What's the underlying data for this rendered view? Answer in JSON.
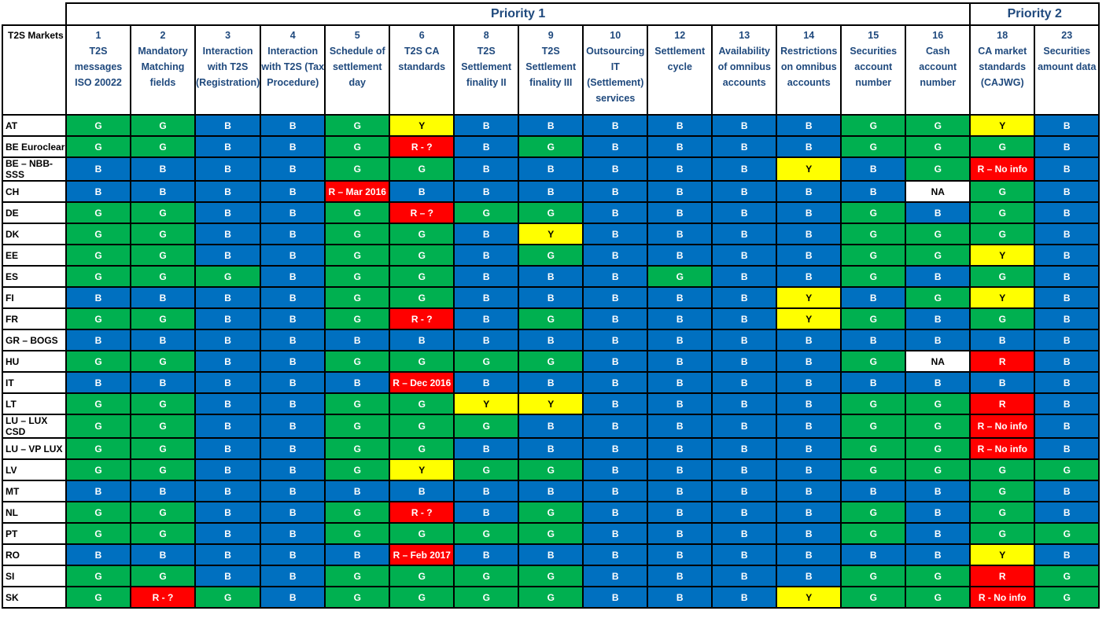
{
  "priority_headers": [
    "Priority 1",
    "Priority 2"
  ],
  "markets_header": "T2S Markets",
  "columns": [
    {
      "num": "1",
      "label": "T2S messages ISO 20022"
    },
    {
      "num": "2",
      "label": "Mandatory Matching fields"
    },
    {
      "num": "3",
      "label": "Interaction with T2S (Registration)"
    },
    {
      "num": "4",
      "label": "Interaction with T2S (Tax Procedure)"
    },
    {
      "num": "5",
      "label": "Schedule of settlement day"
    },
    {
      "num": "6",
      "label": "T2S CA standards"
    },
    {
      "num": "8",
      "label": "T2S Settlement finality II"
    },
    {
      "num": "9",
      "label": "T2S Settlement finality III"
    },
    {
      "num": "10",
      "label": "Outsourcing IT (Settlement) services"
    },
    {
      "num": "12",
      "label": "Settlement cycle"
    },
    {
      "num": "13",
      "label": "Availability of omnibus accounts"
    },
    {
      "num": "14",
      "label": "Restrictions on omnibus accounts"
    },
    {
      "num": "15",
      "label": "Securities account number"
    },
    {
      "num": "16",
      "label": "Cash account number"
    },
    {
      "num": "18",
      "label": "CA market standards (CAJWG)"
    },
    {
      "num": "23",
      "label": "Securities amount data"
    }
  ],
  "rows": [
    {
      "market": "AT",
      "cells": [
        "G",
        "G",
        "B",
        "B",
        "G",
        "Y",
        "B",
        "B",
        "B",
        "B",
        "B",
        "B",
        "G",
        "G",
        "Y",
        "B"
      ]
    },
    {
      "market": "BE Euroclear",
      "cells": [
        "G",
        "G",
        "B",
        "B",
        "G",
        "R - ?",
        "B",
        "G",
        "B",
        "B",
        "B",
        "B",
        "G",
        "G",
        "G",
        "B"
      ]
    },
    {
      "market": "BE – NBB-SSS",
      "cells": [
        "B",
        "B",
        "B",
        "B",
        "G",
        "G",
        "B",
        "B",
        "B",
        "B",
        "B",
        "Y",
        "B",
        "G",
        "R – No info",
        "B"
      ]
    },
    {
      "market": "CH",
      "cells": [
        "B",
        "B",
        "B",
        "B",
        "R – Mar 2016",
        "B",
        "B",
        "B",
        "B",
        "B",
        "B",
        "B",
        "B",
        "NA",
        "G",
        "B"
      ]
    },
    {
      "market": "DE",
      "cells": [
        "G",
        "G",
        "B",
        "B",
        "G",
        "R – ?",
        "G",
        "G",
        "B",
        "B",
        "B",
        "B",
        "G",
        "B",
        "G",
        "B"
      ]
    },
    {
      "market": "DK",
      "cells": [
        "G",
        "G",
        "B",
        "B",
        "G",
        "G",
        "B",
        "Y",
        "B",
        "B",
        "B",
        "B",
        "G",
        "G",
        "G",
        "B"
      ]
    },
    {
      "market": "EE",
      "cells": [
        "G",
        "G",
        "B",
        "B",
        "G",
        "G",
        "B",
        "G",
        "B",
        "B",
        "B",
        "B",
        "G",
        "G",
        "Y",
        "B"
      ]
    },
    {
      "market": "ES",
      "cells": [
        "G",
        "G",
        "G",
        "B",
        "G",
        "G",
        "B",
        "B",
        "B",
        "G",
        "B",
        "B",
        "G",
        "B",
        "G",
        "B"
      ]
    },
    {
      "market": "FI",
      "cells": [
        "B",
        "B",
        "B",
        "B",
        "G",
        "G",
        "B",
        "B",
        "B",
        "B",
        "B",
        "Y",
        "B",
        "G",
        "Y",
        "B"
      ]
    },
    {
      "market": "FR",
      "cells": [
        "G",
        "G",
        "B",
        "B",
        "G",
        "R - ?",
        "B",
        "G",
        "B",
        "B",
        "B",
        "Y",
        "G",
        "B",
        "G",
        "B"
      ]
    },
    {
      "market": "GR – BOGS",
      "cells": [
        "B",
        "B",
        "B",
        "B",
        "B",
        "B",
        "B",
        "B",
        "B",
        "B",
        "B",
        "B",
        "B",
        "B",
        "B",
        "B"
      ]
    },
    {
      "market": "HU",
      "cells": [
        "G",
        "G",
        "B",
        "B",
        "G",
        "G",
        "G",
        "G",
        "B",
        "B",
        "B",
        "B",
        "G",
        "NA",
        "R",
        "B"
      ]
    },
    {
      "market": "IT",
      "cells": [
        "B",
        "B",
        "B",
        "B",
        "B",
        "R – Dec 2016",
        "B",
        "B",
        "B",
        "B",
        "B",
        "B",
        "B",
        "B",
        "B",
        "B"
      ]
    },
    {
      "market": "LT",
      "cells": [
        "G",
        "G",
        "B",
        "B",
        "G",
        "G",
        "Y",
        "Y",
        "B",
        "B",
        "B",
        "B",
        "G",
        "G",
        "R",
        "B"
      ]
    },
    {
      "market": "LU – LUX CSD",
      "cells": [
        "G",
        "G",
        "B",
        "B",
        "G",
        "G",
        "G",
        "B",
        "B",
        "B",
        "B",
        "B",
        "G",
        "G",
        "R – No info",
        "B"
      ]
    },
    {
      "market": "LU – VP LUX",
      "cells": [
        "G",
        "G",
        "B",
        "B",
        "G",
        "G",
        "B",
        "B",
        "B",
        "B",
        "B",
        "B",
        "G",
        "G",
        "R – No info",
        "B"
      ]
    },
    {
      "market": "LV",
      "cells": [
        "G",
        "G",
        "B",
        "B",
        "G",
        "Y",
        "G",
        "G",
        "B",
        "B",
        "B",
        "B",
        "G",
        "G",
        "G",
        "G"
      ]
    },
    {
      "market": "MT",
      "cells": [
        "B",
        "B",
        "B",
        "B",
        "B",
        "B",
        "B",
        "B",
        "B",
        "B",
        "B",
        "B",
        "B",
        "B",
        "G",
        "B"
      ]
    },
    {
      "market": "NL",
      "cells": [
        "G",
        "G",
        "B",
        "B",
        "G",
        "R - ?",
        "B",
        "G",
        "B",
        "B",
        "B",
        "B",
        "G",
        "B",
        "G",
        "B"
      ]
    },
    {
      "market": "PT",
      "cells": [
        "G",
        "G",
        "B",
        "B",
        "G",
        "G",
        "G",
        "G",
        "B",
        "B",
        "B",
        "B",
        "G",
        "B",
        "G",
        "G"
      ]
    },
    {
      "market": "RO",
      "cells": [
        "B",
        "B",
        "B",
        "B",
        "B",
        "R – Feb 2017",
        "B",
        "B",
        "B",
        "B",
        "B",
        "B",
        "B",
        "B",
        "Y",
        "B"
      ]
    },
    {
      "market": "SI",
      "cells": [
        "G",
        "G",
        "B",
        "B",
        "G",
        "G",
        "G",
        "G",
        "B",
        "B",
        "B",
        "B",
        "G",
        "G",
        "R",
        "G"
      ]
    },
    {
      "market": "SK",
      "cells": [
        "G",
        "R - ?",
        "G",
        "B",
        "G",
        "G",
        "G",
        "G",
        "B",
        "B",
        "B",
        "Y",
        "G",
        "G",
        "R - No info",
        "G"
      ]
    }
  ],
  "status_colors": {
    "G": "#00b050",
    "B": "#0070c0",
    "Y": "#ffff00",
    "R": "#ff0000",
    "NA": "#ffffff"
  },
  "header_text_color": "#1f497d"
}
